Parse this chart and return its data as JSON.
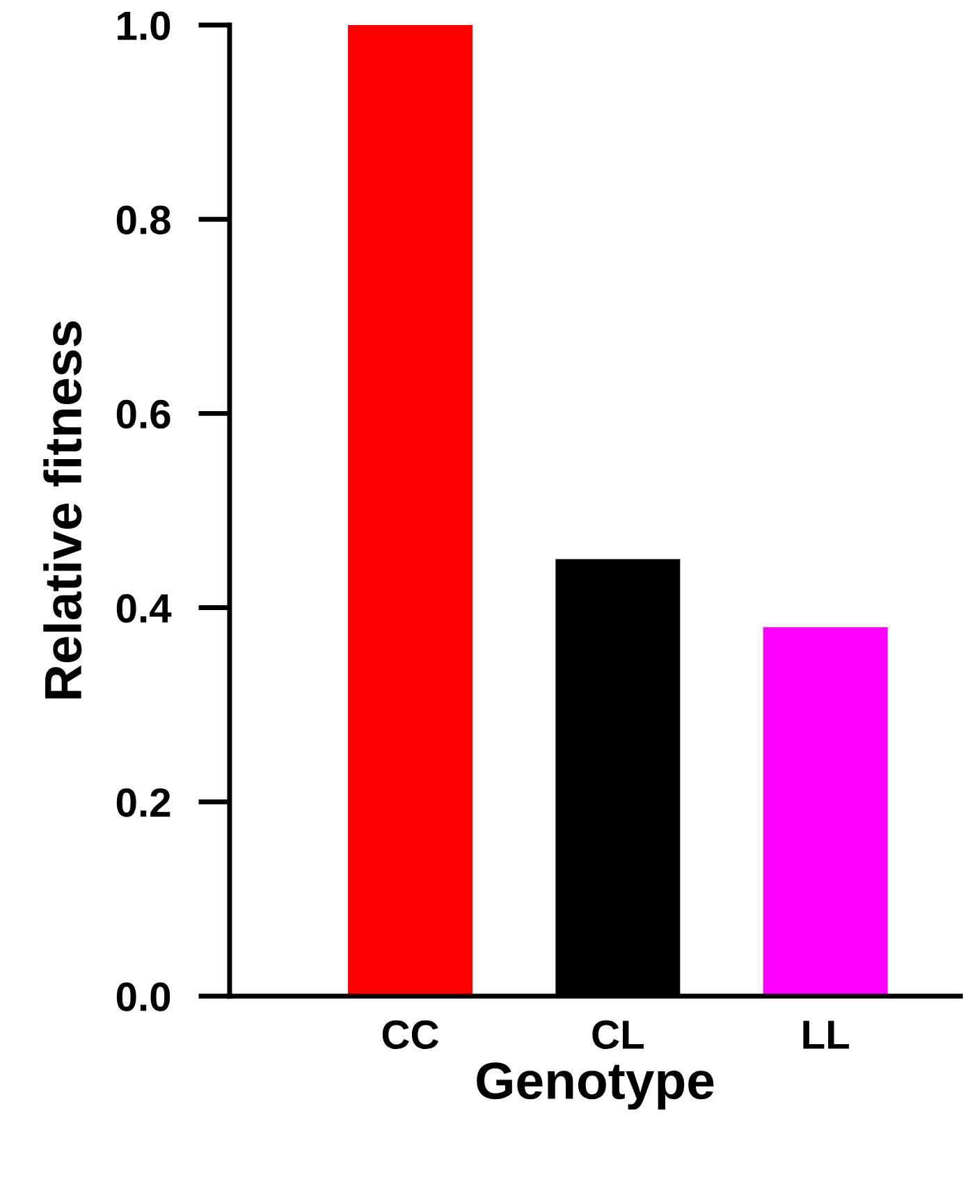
{
  "chart_data": {
    "type": "bar",
    "xlabel": "Genotype",
    "ylabel": "Relative fitness",
    "categories": [
      "CC",
      "CL",
      "LL"
    ],
    "values": [
      1.0,
      0.45,
      0.38
    ],
    "colors": [
      "#ff0000",
      "#000000",
      "#ff00ff"
    ],
    "ylim": [
      0,
      1.0
    ],
    "yticks": [
      {
        "value": 0,
        "label": "0.0"
      },
      {
        "value": 0.2,
        "label": "0.2"
      },
      {
        "value": 0.4,
        "label": "0.4"
      },
      {
        "value": 0.6,
        "label": "0.6"
      },
      {
        "value": 0.8,
        "label": "0.8"
      },
      {
        "value": 1.0,
        "label": "1.0"
      }
    ],
    "grid": false,
    "legend": false
  }
}
